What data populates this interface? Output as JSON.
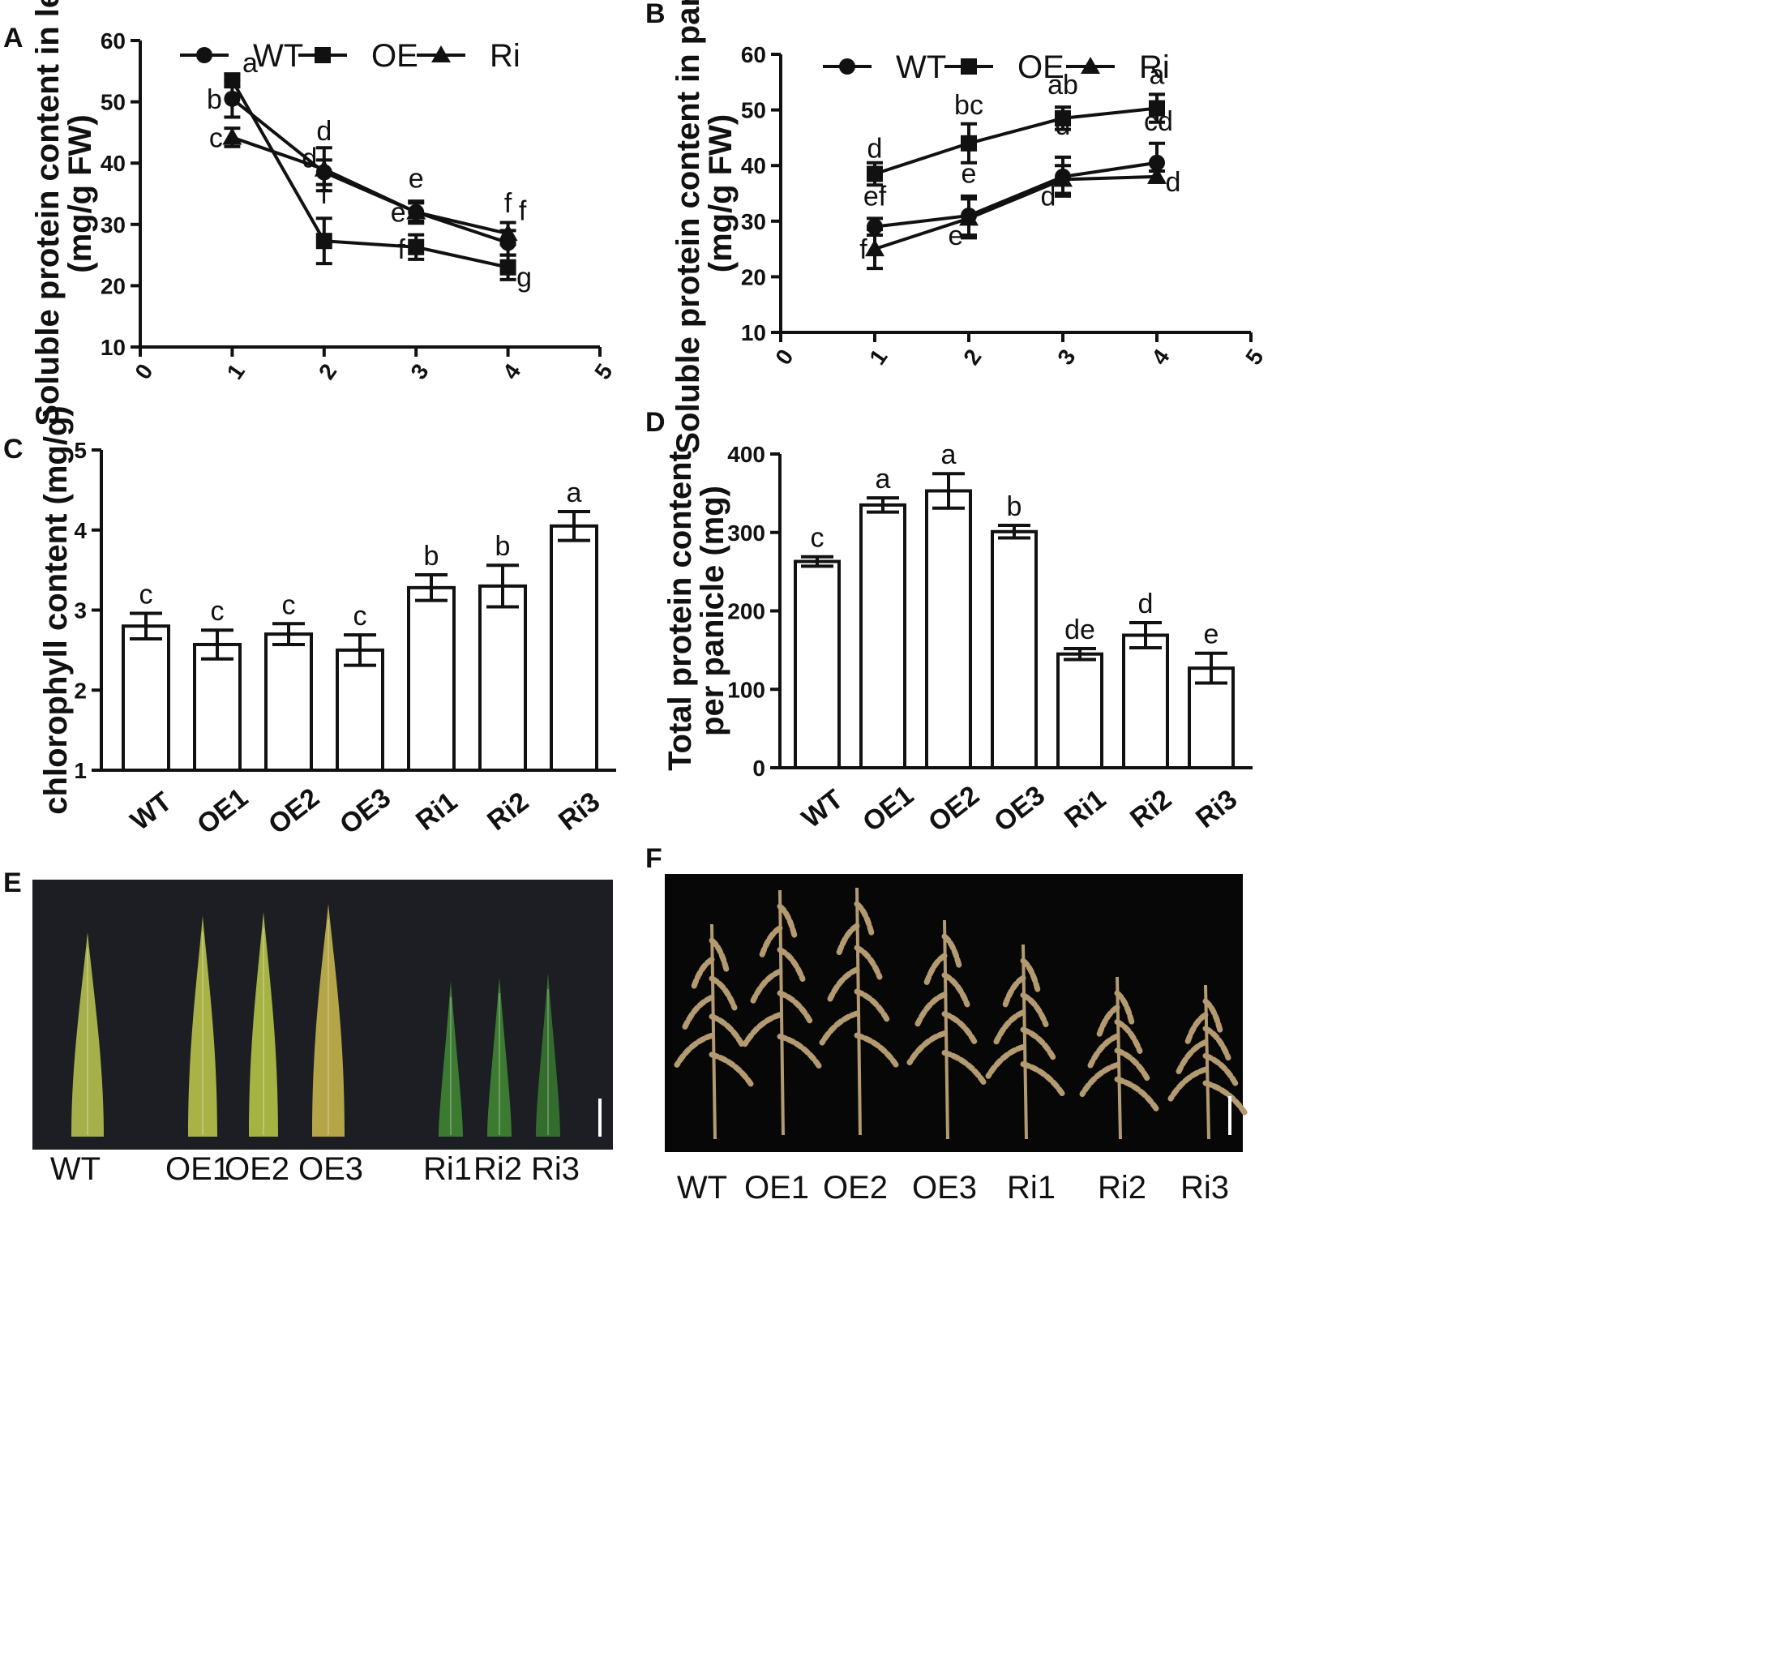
{
  "chart_data": [
    {
      "panel": "A",
      "type": "line",
      "title": "",
      "ylabel_line1": "Soluble protein content in leaf",
      "ylabel_line2": "(mg/g FW)",
      "xlabel": "",
      "xlim": [
        0,
        5
      ],
      "ylim": [
        10,
        60
      ],
      "xticks": [
        0,
        1,
        2,
        3,
        4,
        5
      ],
      "yticks": [
        10,
        20,
        30,
        40,
        50,
        60
      ],
      "x": [
        1,
        2,
        3,
        4
      ],
      "legend": [
        "WT",
        "OE",
        "Ri"
      ],
      "series": [
        {
          "name": "WT",
          "marker": "circle",
          "values": [
            50.5,
            38.5,
            32.0,
            27.0
          ],
          "errors": [
            3.0,
            2.0,
            1.5,
            2.0
          ],
          "letters": [
            "b",
            "d",
            "e",
            "f"
          ]
        },
        {
          "name": "OE",
          "marker": "square",
          "values": [
            53.5,
            27.3,
            26.3,
            23.0
          ],
          "errors": [
            1.0,
            3.7,
            2.0,
            2.0
          ],
          "letters": [
            "a",
            "f",
            "f",
            "g"
          ]
        },
        {
          "name": "Ri",
          "marker": "triangle",
          "values": [
            44.2,
            39.0,
            32.0,
            28.5
          ],
          "errors": [
            1.5,
            3.5,
            1.8,
            1.8
          ],
          "letters": [
            "c",
            "d",
            "e",
            "f"
          ]
        }
      ]
    },
    {
      "panel": "B",
      "type": "line",
      "title": "",
      "ylabel_line1": "Soluble protein content in panicle",
      "ylabel_line2": "(mg/g FW)",
      "xlabel": "",
      "xlim": [
        0,
        5
      ],
      "ylim": [
        10,
        60
      ],
      "xticks": [
        0,
        1,
        2,
        3,
        4,
        5
      ],
      "yticks": [
        10,
        20,
        30,
        40,
        50,
        60
      ],
      "x": [
        1,
        2,
        3,
        4
      ],
      "legend": [
        "WT",
        "OE",
        "Ri"
      ],
      "series": [
        {
          "name": "WT",
          "marker": "circle",
          "values": [
            29.0,
            31.0,
            38.0,
            40.5
          ],
          "errors": [
            1.5,
            3.5,
            3.5,
            3.5
          ],
          "letters": [
            "ef",
            "e",
            "d",
            "cd"
          ]
        },
        {
          "name": "OE",
          "marker": "square",
          "values": [
            38.5,
            44.0,
            48.5,
            50.3
          ],
          "errors": [
            2.0,
            3.5,
            2.0,
            2.5
          ],
          "letters": [
            "d",
            "bc",
            "ab",
            "a"
          ]
        },
        {
          "name": "Ri",
          "marker": "triangle",
          "values": [
            25.0,
            30.5,
            37.5,
            38.0
          ],
          "errors": [
            3.5,
            3.5,
            2.5,
            1.0
          ],
          "letters": [
            "f",
            "e",
            "d",
            "d"
          ]
        }
      ]
    },
    {
      "panel": "C",
      "type": "bar",
      "title": "",
      "ylabel": "chlorophyll content (mg/g)",
      "xlabel": "",
      "ylim": [
        1,
        5
      ],
      "yticks": [
        1,
        2,
        3,
        4,
        5
      ],
      "categories": [
        "WT",
        "OE1",
        "OE2",
        "OE3",
        "Ri1",
        "Ri2",
        "Ri3"
      ],
      "values": [
        2.8,
        2.57,
        2.7,
        2.5,
        3.28,
        3.3,
        4.05
      ],
      "errors": [
        0.16,
        0.18,
        0.13,
        0.19,
        0.16,
        0.26,
        0.18
      ],
      "letters": [
        "c",
        "c",
        "c",
        "c",
        "b",
        "b",
        "a"
      ]
    },
    {
      "panel": "D",
      "type": "bar",
      "title": "",
      "ylabel_line1": "Total protein content",
      "ylabel_line2": "per panicle (mg)",
      "xlabel": "",
      "ylim": [
        0,
        400
      ],
      "yticks": [
        0,
        100,
        200,
        300,
        400
      ],
      "categories": [
        "WT",
        "OE1",
        "OE2",
        "OE3",
        "Ri1",
        "Ri2",
        "Ri3"
      ],
      "values": [
        263,
        335,
        353,
        301,
        145,
        169,
        127
      ],
      "errors": [
        6,
        9,
        22,
        8,
        7,
        16,
        19
      ],
      "letters": [
        "c",
        "a",
        "a",
        "b",
        "de",
        "d",
        "e"
      ]
    }
  ],
  "photos": {
    "leaves": {
      "panel": "E",
      "labels": [
        "WT",
        "OE1",
        "OE2",
        "OE3",
        "Ri1",
        "Ri2",
        "Ri3"
      ],
      "background_color": "#1c1e24",
      "leaf_colors": [
        "#a6b04a",
        "#a9b246",
        "#a5b343",
        "#b3a548",
        "#3c7a32",
        "#3b7a30",
        "#336c2d"
      ]
    },
    "panicles": {
      "panel": "F",
      "labels": [
        "WT",
        "OE1",
        "OE2",
        "OE3",
        "Ri1",
        "Ri2",
        "Ri3"
      ],
      "background_color": "#070707",
      "grain_color": "#b39a70"
    }
  }
}
